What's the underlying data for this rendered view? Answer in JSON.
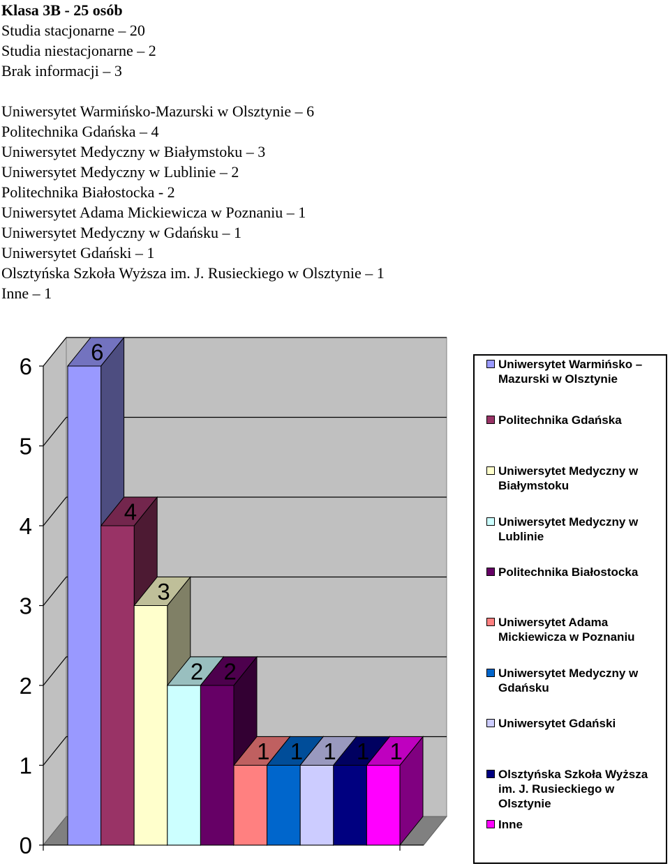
{
  "summary": {
    "title": "Klasa 3B - 25 osób",
    "lines": [
      "Studia stacjonarne – 20",
      "Studia niestacjonarne – 2",
      "Brak informacji – 3"
    ],
    "universities": [
      "Uniwersytet Warmińsko-Mazurski w Olsztynie – 6",
      "Politechnika Gdańska – 4",
      "Uniwersytet Medyczny w Białymstoku – 3",
      "Uniwersytet Medyczny w Lublinie – 2",
      "Politechnika Białostocka - 2",
      "Uniwersytet Adama Mickiewicza w Poznaniu – 1",
      "Uniwersytet Medyczny w Gdańsku – 1",
      "Uniwersytet Gdański – 1",
      "Olsztyńska Szkoła Wyższa im. J. Rusieckiego w Olsztynie – 1",
      "Inne – 1"
    ]
  },
  "chart_data": {
    "type": "bar",
    "style": "3d-column",
    "ylim": [
      0,
      6
    ],
    "yticks": [
      "0",
      "1",
      "2",
      "3",
      "4",
      "5",
      "6"
    ],
    "grid": true,
    "legend_position": "right",
    "series": [
      {
        "name": "Uniwersytet Warmińsko – Mazurski w Olsztynie",
        "value": 6,
        "label": "6",
        "color": "#9999FF"
      },
      {
        "name": "Politechnika Gdańska",
        "value": 4,
        "label": "4",
        "color": "#993366"
      },
      {
        "name": "Uniwersytet Medyczny w Białymstoku",
        "value": 3,
        "label": "3",
        "color": "#FFFFCC"
      },
      {
        "name": "Uniwersytet Medyczny w Lublinie",
        "value": 2,
        "label": "2",
        "color": "#CCFFFF"
      },
      {
        "name": "Politechnika Białostocka",
        "value": 2,
        "label": "2",
        "color": "#660066"
      },
      {
        "name": "Uniwersytet Adama Mickiewicza w Poznaniu",
        "value": 1,
        "label": "1",
        "color": "#FF8080"
      },
      {
        "name": "Uniwersytet Medyczny w Gdańsku",
        "value": 1,
        "label": "1",
        "color": "#0066CC"
      },
      {
        "name": "Uniwersytet Gdański",
        "value": 1,
        "label": "1",
        "color": "#CCCCFF"
      },
      {
        "name": "Olsztyńska Szkoła Wyższa im. J. Rusieckiego w Olsztynie",
        "value": 1,
        "label": "1",
        "color": "#000080"
      },
      {
        "name": "Inne",
        "value": 1,
        "label": "1",
        "color": "#FF00FF"
      }
    ]
  },
  "legend": {
    "items": [
      {
        "lines": [
          "Uniwersytet Warmińsko –",
          "Mazurski w Olsztynie"
        ],
        "color": "#9999FF"
      },
      {
        "lines": [
          "Politechnika Gdańska"
        ],
        "color": "#993366"
      },
      {
        "lines": [
          "Uniwersytet Medyczny w",
          "Białymstoku"
        ],
        "color": "#FFFFCC"
      },
      {
        "lines": [
          "Uniwersytet Medyczny w",
          "Lublinie"
        ],
        "color": "#CCFFFF"
      },
      {
        "lines": [
          "Politechnika Białostocka"
        ],
        "color": "#660066"
      },
      {
        "lines": [
          "Uniwersytet Adama",
          "Mickiewicza w Poznaniu"
        ],
        "color": "#FF8080"
      },
      {
        "lines": [
          "Uniwersytet Medyczny w",
          "Gdańsku"
        ],
        "color": "#0066CC"
      },
      {
        "lines": [
          "Uniwersytet Gdański"
        ],
        "color": "#CCCCFF"
      },
      {
        "lines": [
          "Olsztyńska Szkoła Wyższa",
          "im. J. Rusieckiego w",
          "Olsztynie"
        ],
        "color": "#000080"
      },
      {
        "lines": [
          "Inne"
        ],
        "color": "#FF00FF"
      }
    ]
  }
}
